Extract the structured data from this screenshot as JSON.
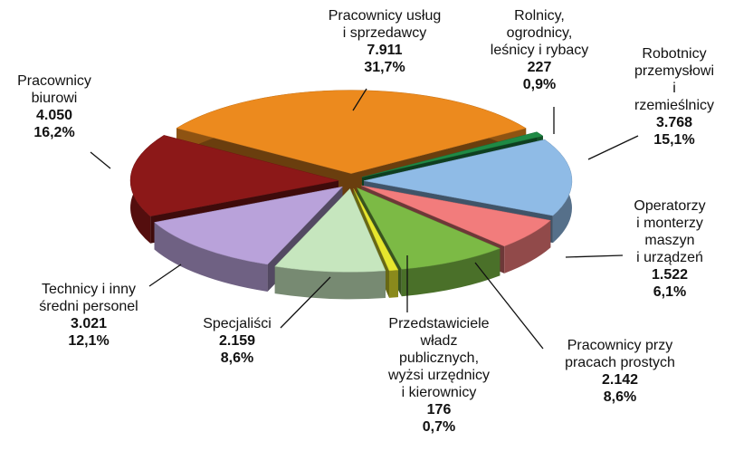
{
  "chart_data": {
    "type": "pie3d",
    "categories": [
      "Pracownicy usług\ni sprzedawcy",
      "Rolnicy,\nogrodnicy,\nleśnicy i rybacy",
      "Robotnicy\nprzemysłowi\ni rzemieślnicy",
      "Operatorzy\ni monterzy\nmaszyn\ni urządzeń",
      "Pracownicy przy\npracach prostych",
      "Przedstawiciele\nwładz\npublicznych,\nwyżsi urzędnicy\ni kierownicy",
      "Specjaliści",
      "Technicy i inny\nśredni personel",
      "Pracownicy\nbiurowi"
    ],
    "values": [
      7911,
      227,
      3768,
      1522,
      2142,
      176,
      2159,
      3021,
      4050
    ],
    "value_labels": [
      "7.911",
      "227",
      "3.768",
      "1.522",
      "2.142",
      "176",
      "2.159",
      "3.021",
      "4.050"
    ],
    "percents": [
      31.7,
      0.9,
      15.1,
      6.1,
      8.6,
      0.7,
      8.6,
      12.1,
      16.2
    ],
    "percent_labels": [
      "31,7%",
      "0,9%",
      "15,1%",
      "6,1%",
      "8,6%",
      "0,7%",
      "8,6%",
      "12,1%",
      "16,2%"
    ],
    "colors": [
      "#ec8a1e",
      "#1f8a45",
      "#8fbbe6",
      "#f27c7c",
      "#7cba45",
      "#e6e62e",
      "#c6e6be",
      "#b9a2da",
      "#8c1818"
    ]
  }
}
